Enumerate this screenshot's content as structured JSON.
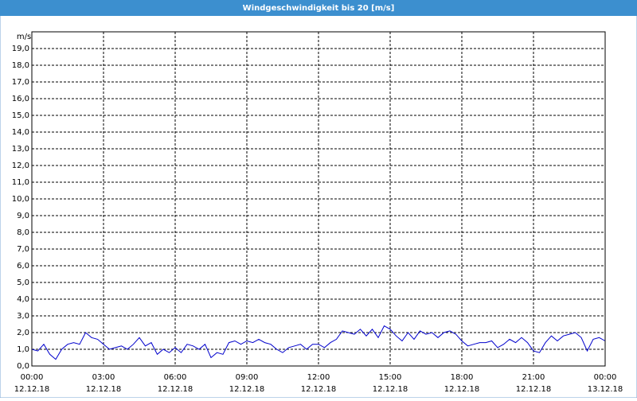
{
  "chart_data": {
    "type": "line",
    "title": "Windgeschwindigkeit bis 20 [m/s]",
    "ylabel": "m/s",
    "color": "#0000cc",
    "grid": true,
    "x": [
      0,
      0.25,
      0.5,
      0.75,
      1,
      1.25,
      1.5,
      1.75,
      2,
      2.25,
      2.5,
      2.75,
      3,
      3.25,
      3.5,
      3.75,
      4,
      4.25,
      4.5,
      4.75,
      5,
      5.25,
      5.5,
      5.75,
      6,
      6.25,
      6.5,
      6.75,
      7,
      7.25,
      7.5,
      7.75,
      8,
      8.25,
      8.5,
      8.75,
      9,
      9.25,
      9.5,
      9.75,
      10,
      10.25,
      10.5,
      10.75,
      11,
      11.25,
      11.5,
      11.75,
      12,
      12.25,
      12.5,
      12.75,
      13,
      13.25,
      13.5,
      13.75,
      14,
      14.25,
      14.5,
      14.75,
      15,
      15.25,
      15.5,
      15.75,
      16,
      16.25,
      16.5,
      16.75,
      17,
      17.25,
      17.5,
      17.75,
      18,
      18.25,
      18.5,
      18.75,
      19,
      19.25,
      19.5,
      19.75,
      20,
      20.25,
      20.5,
      20.75,
      21,
      21.25,
      21.5,
      21.75,
      22,
      22.25,
      22.5,
      22.75,
      23,
      23.25,
      23.5,
      23.75,
      24
    ],
    "values": [
      1.0,
      0.9,
      1.3,
      0.7,
      0.4,
      1.0,
      1.3,
      1.4,
      1.3,
      2.0,
      1.7,
      1.6,
      1.3,
      1.0,
      1.1,
      1.2,
      1.0,
      1.3,
      1.7,
      1.2,
      1.4,
      0.7,
      1.0,
      0.8,
      1.1,
      0.8,
      1.3,
      1.2,
      1.0,
      1.3,
      0.5,
      0.8,
      0.7,
      1.4,
      1.5,
      1.3,
      1.5,
      1.4,
      1.6,
      1.4,
      1.3,
      1.0,
      0.8,
      1.1,
      1.2,
      1.3,
      1.0,
      1.3,
      1.3,
      1.1,
      1.4,
      1.6,
      2.1,
      2.0,
      1.9,
      2.2,
      1.8,
      2.2,
      1.7,
      2.4,
      2.2,
      1.8,
      1.5,
      2.0,
      1.6,
      2.1,
      1.9,
      2.0,
      1.7,
      2.0,
      2.1,
      1.9,
      1.5,
      1.2,
      1.3,
      1.4,
      1.4,
      1.5,
      1.1,
      1.3,
      1.6,
      1.4,
      1.7,
      1.4,
      0.9,
      0.8,
      1.4,
      1.8,
      1.5,
      1.8,
      1.9,
      2.0,
      1.7,
      0.9,
      1.6,
      1.7,
      1.5
    ],
    "xlim": [
      0,
      24
    ],
    "xticks": [
      {
        "value": 0,
        "label": "00:00"
      },
      {
        "value": 3,
        "label": "03:00"
      },
      {
        "value": 6,
        "label": "06:00"
      },
      {
        "value": 9,
        "label": "09:00"
      },
      {
        "value": 12,
        "label": "12:00"
      },
      {
        "value": 15,
        "label": "15:00"
      },
      {
        "value": 18,
        "label": "18:00"
      },
      {
        "value": 21,
        "label": "21:00"
      },
      {
        "value": 24,
        "label": "00:00"
      }
    ],
    "xtick_dates": [
      "12.12.18",
      "12.12.18",
      "12.12.18",
      "12.12.18",
      "12.12.18",
      "12.12.18",
      "12.12.18",
      "12.12.18",
      "13.12.18"
    ],
    "ylim": [
      0,
      20
    ],
    "yticks": [
      {
        "value": 0,
        "label": "0,0"
      },
      {
        "value": 1,
        "label": "1,0"
      },
      {
        "value": 2,
        "label": "2,0"
      },
      {
        "value": 3,
        "label": "3,0"
      },
      {
        "value": 4,
        "label": "4,0"
      },
      {
        "value": 5,
        "label": "5,0"
      },
      {
        "value": 6,
        "label": "6,0"
      },
      {
        "value": 7,
        "label": "7,0"
      },
      {
        "value": 8,
        "label": "8,0"
      },
      {
        "value": 9,
        "label": "9,0"
      },
      {
        "value": 10,
        "label": "10,0"
      },
      {
        "value": 11,
        "label": "11,0"
      },
      {
        "value": 12,
        "label": "12,0"
      },
      {
        "value": 13,
        "label": "13,0"
      },
      {
        "value": 14,
        "label": "14,0"
      },
      {
        "value": 15,
        "label": "15,0"
      },
      {
        "value": 16,
        "label": "16,0"
      },
      {
        "value": 17,
        "label": "17,0"
      },
      {
        "value": 18,
        "label": "18,0"
      },
      {
        "value": 19,
        "label": "19,0"
      }
    ]
  }
}
